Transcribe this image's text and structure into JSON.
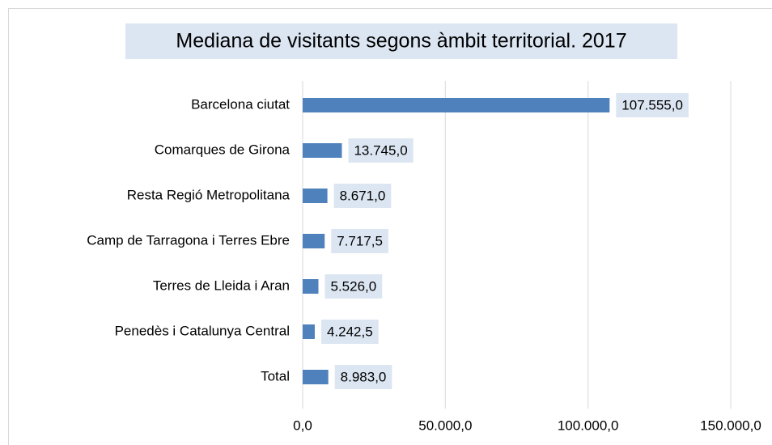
{
  "chart_data": {
    "type": "barh",
    "title": "Mediana de visitants segons àmbit territorial. 2017",
    "categories": [
      "Barcelona ciutat",
      "Comarques de Girona",
      "Resta Regió Metropolitana",
      "Camp de Tarragona i Terres Ebre",
      "Terres de Lleida i Aran",
      "Penedès i Catalunya Central",
      "Total"
    ],
    "values": [
      107555,
      13745,
      8671,
      7717.5,
      5526,
      4242.5,
      8983
    ],
    "value_labels": [
      "107.555,0",
      "13.745,0",
      "8.671,0",
      "7.717,5",
      "5.526,0",
      "4.242,5",
      "8.983,0"
    ],
    "color": "#4f81bd",
    "xlim": [
      0,
      150000
    ],
    "xticks": [
      {
        "value": 0,
        "label": "0,0"
      },
      {
        "value": 50000,
        "label": "50.000,0"
      },
      {
        "value": 100000,
        "label": "100.000,0"
      },
      {
        "value": 150000,
        "label": "150.000,0"
      }
    ],
    "grid": true
  }
}
